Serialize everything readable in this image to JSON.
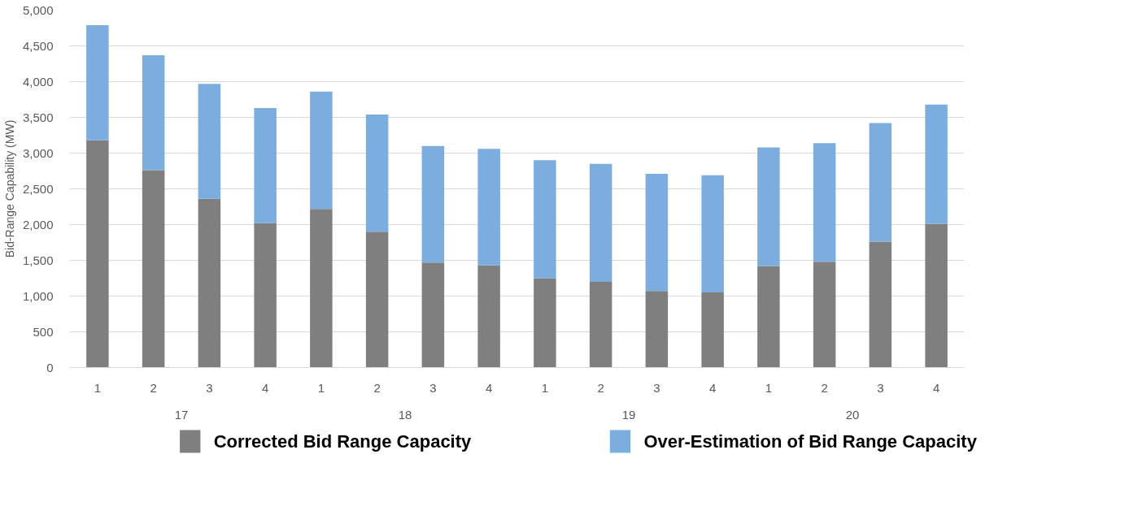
{
  "chart_data": {
    "type": "bar",
    "stacked": true,
    "ylabel": "Bid-Range Capability (MW)",
    "categories": [
      "1",
      "2",
      "3",
      "4",
      "1",
      "2",
      "3",
      "4",
      "1",
      "2",
      "3",
      "4",
      "1",
      "2",
      "3",
      "4"
    ],
    "annotations": [
      "17",
      "18",
      "19",
      "20"
    ],
    "series": [
      {
        "name": "Corrected Bid Range Capacity",
        "color": "#7f7f7f",
        "values": [
          3180,
          2760,
          2360,
          2020,
          2220,
          1900,
          1470,
          1430,
          1250,
          1200,
          1070,
          1050,
          1420,
          1480,
          1760,
          2010
        ]
      },
      {
        "name": "Over-Estimation of Bid Range Capacity",
        "color": "#7badde",
        "values": [
          1610,
          1610,
          1610,
          1610,
          1640,
          1640,
          1630,
          1630,
          1650,
          1650,
          1640,
          1640,
          1660,
          1660,
          1660,
          1670
        ]
      }
    ],
    "ylim": [
      0,
      5000
    ],
    "yticks": [
      {
        "value": 0,
        "label": "0"
      },
      {
        "value": 500,
        "label": "500"
      },
      {
        "value": 1000,
        "label": "1,000"
      },
      {
        "value": 1500,
        "label": "1,500"
      },
      {
        "value": 2000,
        "label": "2,000"
      },
      {
        "value": 2500,
        "label": "2,500"
      },
      {
        "value": 3000,
        "label": "3,000"
      },
      {
        "value": 3500,
        "label": "3,500"
      },
      {
        "value": 4000,
        "label": "4,000"
      },
      {
        "value": 4500,
        "label": "4,500"
      },
      {
        "value": 5000,
        "label": "5,000"
      }
    ],
    "grid": "y",
    "legend": "bottom"
  }
}
